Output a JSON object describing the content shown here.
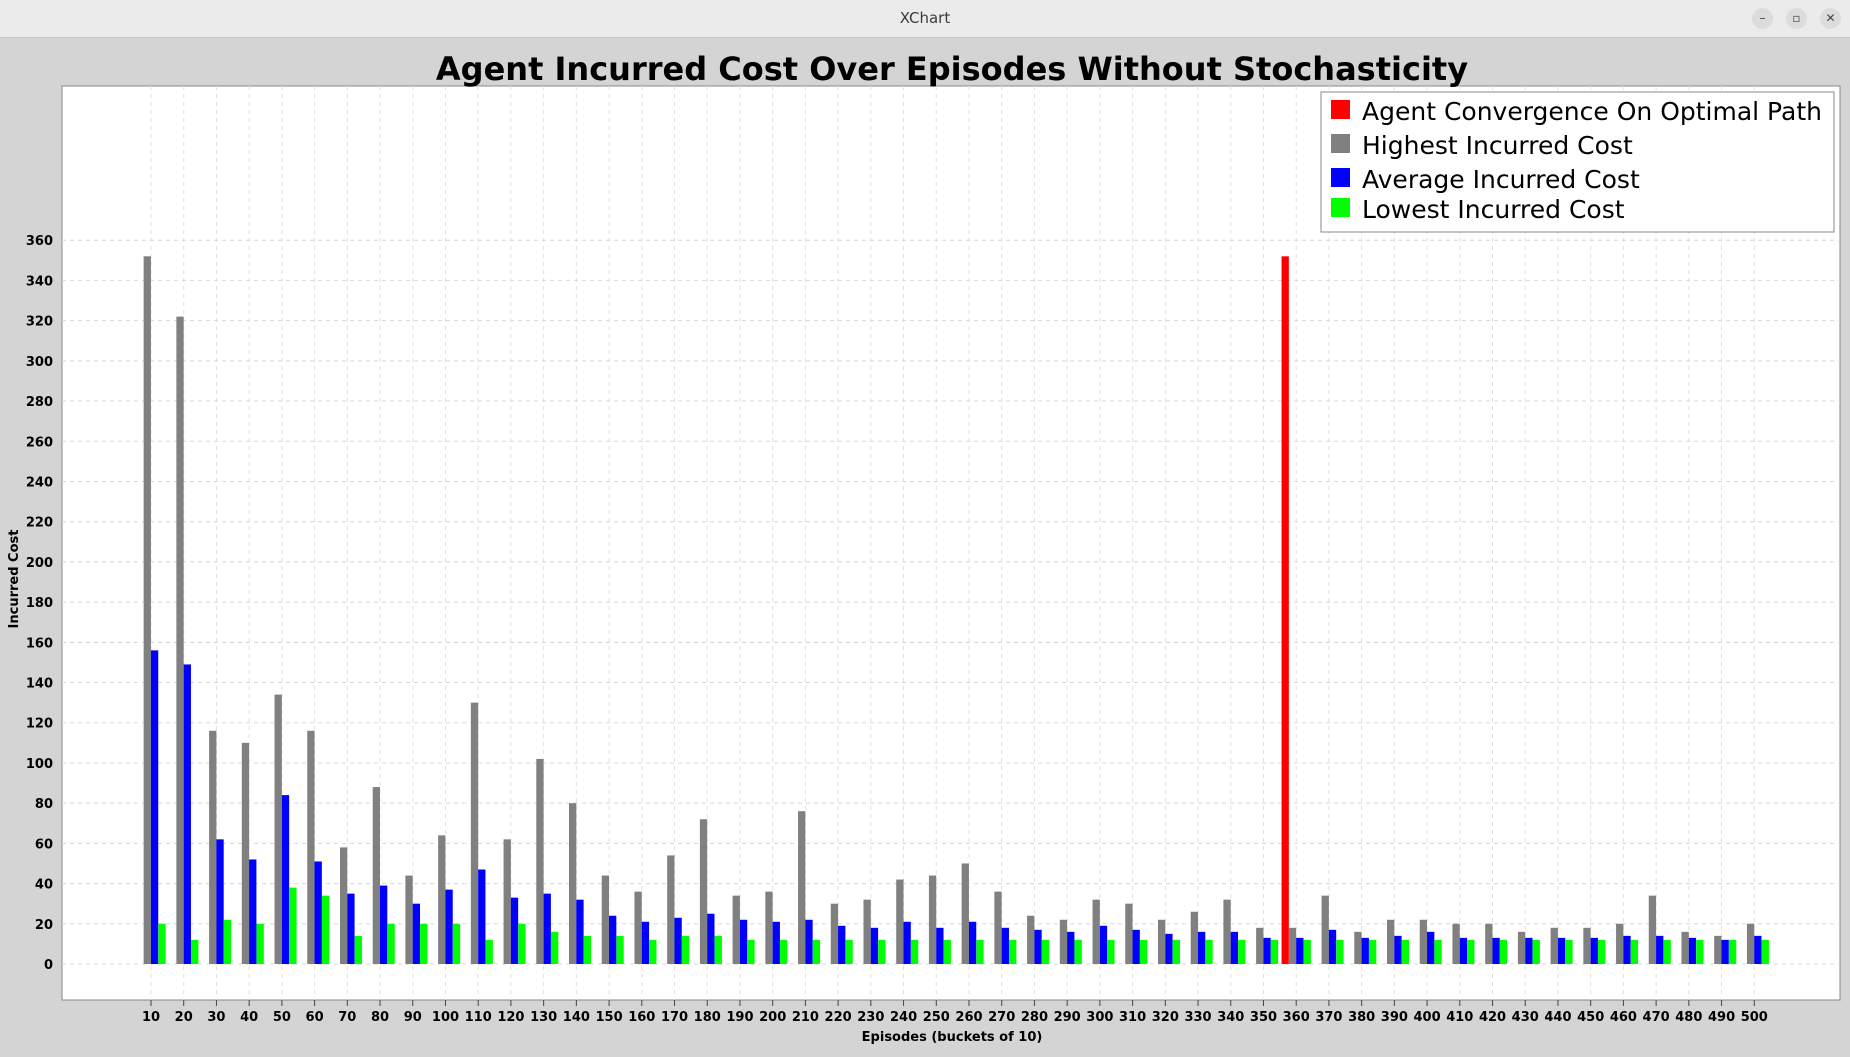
{
  "window": {
    "title": "XChart",
    "controls": {
      "minimize": "–",
      "maximize": "▫",
      "close": "✕"
    }
  },
  "chart_data": {
    "type": "bar",
    "title": "Agent Incurred Cost Over Episodes Without Stochasticity",
    "xlabel": "Episodes (buckets of 10)",
    "ylabel": "Incurred Cost",
    "ylim": [
      0,
      360
    ],
    "yticks": [
      0,
      20,
      40,
      60,
      80,
      100,
      120,
      140,
      160,
      180,
      200,
      220,
      240,
      260,
      280,
      300,
      320,
      340,
      360
    ],
    "grid": true,
    "legend_position": "top-right",
    "categories": [
      "10",
      "20",
      "30",
      "40",
      "50",
      "60",
      "70",
      "80",
      "90",
      "100",
      "110",
      "120",
      "130",
      "140",
      "150",
      "160",
      "170",
      "180",
      "190",
      "200",
      "210",
      "220",
      "230",
      "240",
      "250",
      "260",
      "270",
      "280",
      "290",
      "300",
      "310",
      "320",
      "330",
      "340",
      "350",
      "360",
      "370",
      "380",
      "390",
      "400",
      "410",
      "420",
      "430",
      "440",
      "450",
      "460",
      "470",
      "480",
      "490",
      "500"
    ],
    "series": [
      {
        "name": "Agent Convergence On Optimal Path",
        "color": "#ff0000",
        "values": [
          0,
          0,
          0,
          0,
          0,
          0,
          0,
          0,
          0,
          0,
          0,
          0,
          0,
          0,
          0,
          0,
          0,
          0,
          0,
          0,
          0,
          0,
          0,
          0,
          0,
          0,
          0,
          0,
          0,
          0,
          0,
          0,
          0,
          0,
          0,
          352,
          0,
          0,
          0,
          0,
          0,
          0,
          0,
          0,
          0,
          0,
          0,
          0,
          0,
          0
        ]
      },
      {
        "name": "Highest Incurred Cost",
        "color": "#808080",
        "values": [
          352,
          322,
          116,
          110,
          134,
          116,
          58,
          88,
          44,
          64,
          130,
          62,
          102,
          80,
          44,
          36,
          54,
          72,
          34,
          36,
          76,
          30,
          32,
          42,
          44,
          50,
          36,
          24,
          22,
          32,
          30,
          22,
          26,
          32,
          18,
          18,
          34,
          16,
          22,
          22,
          20,
          20,
          16,
          18,
          18,
          20,
          34,
          16,
          14,
          20
        ]
      },
      {
        "name": "Average Incurred Cost",
        "color": "#0000ff",
        "values": [
          156,
          149,
          62,
          52,
          84,
          51,
          35,
          39,
          30,
          37,
          47,
          33,
          35,
          32,
          24,
          21,
          23,
          25,
          22,
          21,
          22,
          19,
          18,
          21,
          18,
          21,
          18,
          17,
          16,
          19,
          17,
          15,
          16,
          16,
          13,
          13,
          17,
          13,
          14,
          16,
          13,
          13,
          13,
          13,
          13,
          14,
          14,
          13,
          12,
          14
        ]
      },
      {
        "name": "Lowest Incurred Cost",
        "color": "#00ff00",
        "values": [
          20,
          12,
          22,
          20,
          38,
          34,
          14,
          20,
          20,
          20,
          12,
          20,
          16,
          14,
          14,
          12,
          14,
          14,
          12,
          12,
          12,
          12,
          12,
          12,
          12,
          12,
          12,
          12,
          12,
          12,
          12,
          12,
          12,
          12,
          12,
          12,
          12,
          12,
          12,
          12,
          12,
          12,
          12,
          12,
          12,
          12,
          12,
          12,
          12,
          12
        ]
      }
    ]
  }
}
